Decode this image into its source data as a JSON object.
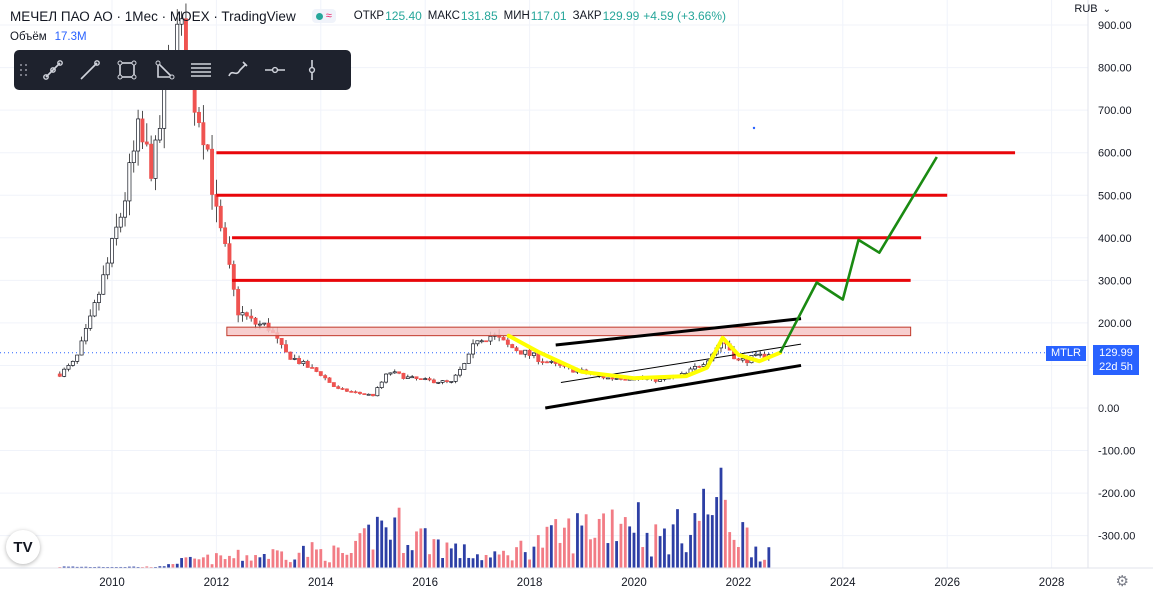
{
  "header": {
    "symbol": "МЕЧЕЛ ПАО АО · 1Мес · MOEX · TradingView",
    "open_label": "ОТКР",
    "open": "125.40",
    "high_label": "МАКС",
    "high": "131.85",
    "low_label": "МИН",
    "low": "117.01",
    "close_label": "ЗАКР",
    "close": "129.99",
    "change": "+4.59 (+3.66%)"
  },
  "volume": {
    "label": "Объём",
    "value": "17.3M"
  },
  "currency": "RUB",
  "price_tag": {
    "symbol": "MTLR",
    "price": "129.99",
    "countdown": "22d 5h"
  },
  "toolbar_icons": [
    "grip-icon",
    "trend-line-icon",
    "ray-icon",
    "rectangle-icon",
    "triangle-icon",
    "fib-lines-icon",
    "brush-icon",
    "horizontal-ray-icon",
    "vertical-line-icon"
  ],
  "logo": "TV",
  "colors": {
    "up": "#26a69a",
    "down": "#ef5350",
    "candle_body_up": "#2b3a8f",
    "volume_up": "#2d3fa5",
    "volume_down": "#f27c85",
    "accent": "#2962ff",
    "red_line": "#e8060a",
    "yellow": "#ffff00",
    "green": "#1a8a12"
  },
  "chart_data": {
    "type": "candlestick",
    "y_ticks": [
      "900.00",
      "800.00",
      "700.00",
      "600.00",
      "500.00",
      "400.00",
      "300.00",
      "200.00",
      "100.00",
      "0.00",
      "-100.00",
      "-200.00",
      "-300.00"
    ],
    "x_ticks": [
      "2010",
      "2012",
      "2014",
      "2016",
      "2018",
      "2020",
      "2022",
      "2024",
      "2026",
      "2028"
    ],
    "ylim": [
      -370,
      930
    ],
    "xlim": [
      2008.5,
      2029.2
    ],
    "current_price": 129.99,
    "resistance_levels": [
      600,
      500,
      400,
      300
    ],
    "zone": [
      170,
      190
    ],
    "price_path": [
      [
        2009.0,
        80
      ],
      [
        2009.3,
        110
      ],
      [
        2009.6,
        210
      ],
      [
        2009.9,
        330
      ],
      [
        2010.2,
        470
      ],
      [
        2010.5,
        640
      ],
      [
        2010.8,
        560
      ],
      [
        2011.1,
        820
      ],
      [
        2011.3,
        890
      ],
      [
        2011.5,
        760
      ],
      [
        2011.8,
        640
      ],
      [
        2012.0,
        450
      ],
      [
        2012.2,
        350
      ],
      [
        2012.4,
        230
      ],
      [
        2012.7,
        200
      ],
      [
        2013.0,
        190
      ],
      [
        2013.3,
        130
      ],
      [
        2013.7,
        100
      ],
      [
        2014.0,
        80
      ],
      [
        2014.3,
        45
      ],
      [
        2014.7,
        35
      ],
      [
        2015.0,
        30
      ],
      [
        2015.3,
        85
      ],
      [
        2015.7,
        70
      ],
      [
        2016.0,
        65
      ],
      [
        2016.5,
        60
      ],
      [
        2016.8,
        110
      ],
      [
        2017.0,
        165
      ],
      [
        2017.3,
        170
      ],
      [
        2017.6,
        145
      ],
      [
        2018.0,
        125
      ],
      [
        2018.5,
        100
      ],
      [
        2019.0,
        85
      ],
      [
        2019.5,
        70
      ],
      [
        2020.0,
        72
      ],
      [
        2020.5,
        65
      ],
      [
        2021.0,
        80
      ],
      [
        2021.4,
        115
      ],
      [
        2021.7,
        160
      ],
      [
        2022.0,
        110
      ],
      [
        2022.4,
        120
      ],
      [
        2022.6,
        130
      ]
    ],
    "volume_path": [
      [
        2011.1,
        20
      ],
      [
        2013.8,
        60
      ],
      [
        2014.6,
        45
      ],
      [
        2015.0,
        130
      ],
      [
        2015.2,
        160
      ],
      [
        2016.7,
        55
      ],
      [
        2017.3,
        35
      ],
      [
        2020.0,
        200
      ],
      [
        2020.3,
        95
      ],
      [
        2021.0,
        140
      ],
      [
        2021.6,
        240
      ],
      [
        2021.7,
        220
      ],
      [
        2021.9,
        150
      ],
      [
        2022.1,
        120
      ],
      [
        2022.4,
        60
      ]
    ],
    "channel": {
      "upper": [
        [
          2018.5,
          148
        ],
        [
          2023.2,
          210
        ]
      ],
      "lower": [
        [
          2018.3,
          0
        ],
        [
          2023.2,
          100
        ]
      ],
      "middle": [
        [
          2018.6,
          60
        ],
        [
          2023.2,
          150
        ]
      ]
    },
    "yellow_path": [
      [
        2017.6,
        170
      ],
      [
        2018.2,
        130
      ],
      [
        2019.0,
        85
      ],
      [
        2020.0,
        70
      ],
      [
        2021.0,
        75
      ],
      [
        2021.4,
        95
      ],
      [
        2021.7,
        165
      ],
      [
        2022.0,
        125
      ],
      [
        2022.4,
        110
      ],
      [
        2022.8,
        130
      ]
    ],
    "green_path": [
      [
        2022.8,
        130
      ],
      [
        2023.5,
        295
      ],
      [
        2024.0,
        255
      ],
      [
        2024.3,
        395
      ],
      [
        2024.7,
        365
      ],
      [
        2025.8,
        590
      ]
    ]
  }
}
